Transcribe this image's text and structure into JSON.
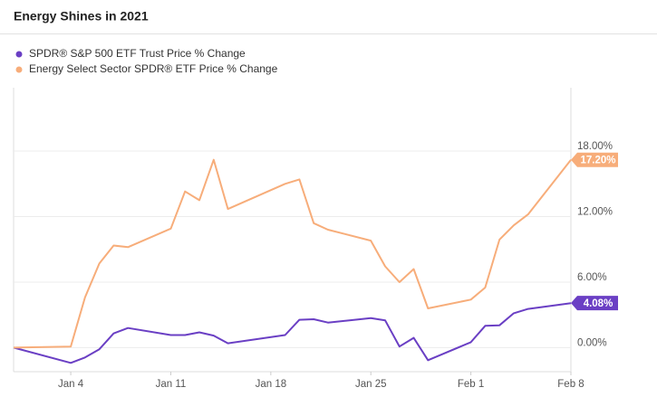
{
  "chart_data": {
    "type": "line",
    "title": "Energy Shines in 2021",
    "x": [
      0,
      4,
      5,
      6,
      7,
      8,
      11,
      12,
      13,
      14,
      15,
      19,
      20,
      21,
      22,
      25,
      26,
      27,
      28,
      29,
      32,
      33,
      34,
      35,
      36,
      39
    ],
    "series": [
      {
        "name": "SPDR® S&P 500 ETF Trust Price % Change",
        "color": "#6a3fc4",
        "values": [
          0,
          -1.4,
          -0.9,
          -0.15,
          1.3,
          1.8,
          1.15,
          1.15,
          1.4,
          1.1,
          0.4,
          1.15,
          2.55,
          2.6,
          2.3,
          2.7,
          2.5,
          0.1,
          0.9,
          -1.15,
          0.5,
          2.0,
          2.05,
          3.15,
          3.55,
          4.08
        ],
        "last_label": "4.08%"
      },
      {
        "name": "Energy Select Sector SPDR® ETF Price % Change",
        "color": "#f7ad7a",
        "values": [
          0,
          0.1,
          4.6,
          7.7,
          9.35,
          9.2,
          10.9,
          14.3,
          13.5,
          17.2,
          12.7,
          15.0,
          15.4,
          11.4,
          10.8,
          9.8,
          7.45,
          6.0,
          7.2,
          3.6,
          4.4,
          5.5,
          9.9,
          11.2,
          12.2,
          17.2
        ],
        "last_label": "17.20%"
      }
    ],
    "xlim": [
      0,
      39
    ],
    "xticks": [
      {
        "value": 4,
        "label": "Jan 4"
      },
      {
        "value": 11,
        "label": "Jan 11"
      },
      {
        "value": 18,
        "label": "Jan 18"
      },
      {
        "value": 25,
        "label": "Jan 25"
      },
      {
        "value": 32,
        "label": "Feb 1"
      },
      {
        "value": 39,
        "label": "Feb 8"
      }
    ],
    "ylim": [
      -2.2,
      23.8
    ],
    "yticks": [
      {
        "value": 0,
        "label": "0.00%"
      },
      {
        "value": 6,
        "label": "6.00%"
      },
      {
        "value": 12,
        "label": "12.00%"
      },
      {
        "value": 18,
        "label": "18.00%"
      }
    ],
    "grid": true
  }
}
